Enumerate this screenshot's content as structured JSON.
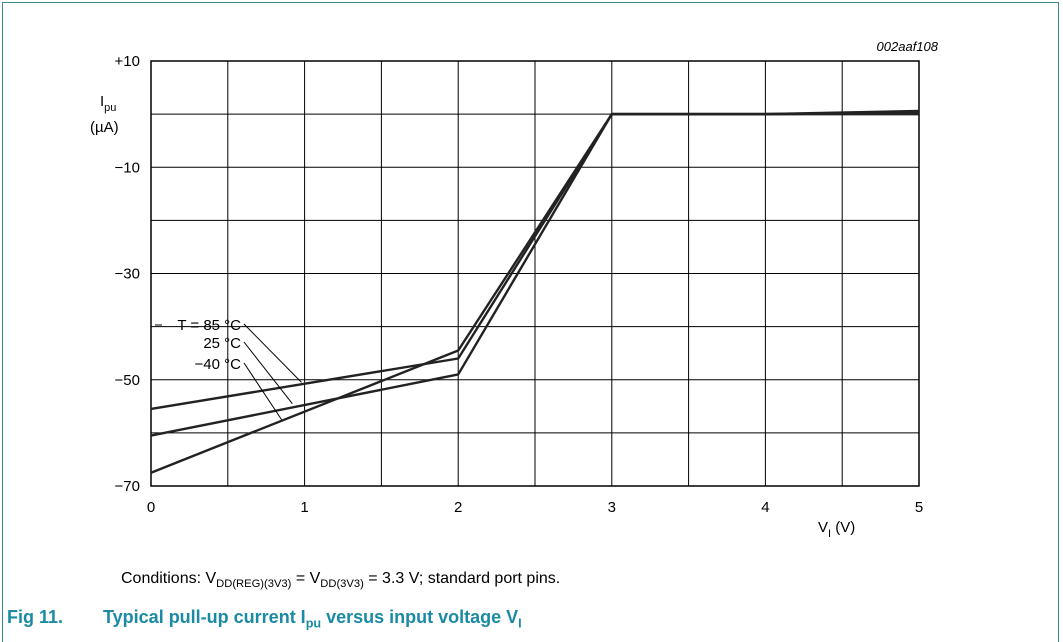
{
  "figure_code": "002aaf108",
  "conditions": {
    "prefix": "Conditions: V",
    "sub1": "DD(REG)(3V3)",
    "mid": " = V",
    "sub2": "DD(3V3)",
    "suffix": " = 3.3 V; standard port pins."
  },
  "caption": {
    "number": "Fig 11.",
    "text1": "Typical pull-up current I",
    "sub1": "pu",
    "text2": " versus input voltage V",
    "sub2": "I"
  },
  "chart_data": {
    "type": "line",
    "ylabel_main": "I",
    "ylabel_sub": "pu",
    "ylabel_unit": "(µA)",
    "xlabel_main": "V",
    "xlabel_sub": "I",
    "xlabel_unit": " (V)",
    "xlim": [
      0,
      5
    ],
    "ylim": [
      -70,
      10
    ],
    "x_ticks": [
      "0",
      "1",
      "2",
      "3",
      "4",
      "5"
    ],
    "y_ticks": [
      {
        "value": 10,
        "label": "+10"
      },
      {
        "value": -10,
        "label": "−10"
      },
      {
        "value": -30,
        "label": "−30"
      },
      {
        "value": -50,
        "label": "−50"
      },
      {
        "value": -70,
        "label": "−70"
      }
    ],
    "grid": true,
    "series": [
      {
        "name": "T = 85 °C",
        "label_pos": [
          0.98,
          -50.5
        ],
        "x": [
          0,
          2,
          3,
          4,
          5
        ],
        "y": [
          -55.5,
          -46,
          0,
          0,
          0
        ]
      },
      {
        "name": "25 °C",
        "label_pos": [
          0.92,
          -54.5
        ],
        "x": [
          0,
          2,
          3,
          4,
          5
        ],
        "y": [
          -60.5,
          -49,
          0,
          0,
          0.3
        ]
      },
      {
        "name": "−40 °C",
        "label_pos": [
          0.85,
          -57.5
        ],
        "x": [
          0,
          2,
          3,
          4,
          5
        ],
        "y": [
          -67.5,
          -44.5,
          0,
          0,
          0.6
        ]
      }
    ]
  }
}
